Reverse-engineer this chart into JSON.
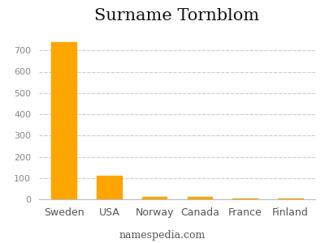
{
  "title": "Surname Tornblom",
  "categories": [
    "Sweden",
    "USA",
    "Norway",
    "Canada",
    "France",
    "Finland"
  ],
  "values": [
    740,
    112,
    13,
    11,
    4,
    4
  ],
  "bar_color": "#FFA500",
  "background_color": "#ffffff",
  "ylim": [
    0,
    800
  ],
  "yticks": [
    0,
    100,
    200,
    300,
    400,
    500,
    600,
    700
  ],
  "grid_color": "#cccccc",
  "title_fontsize": 15,
  "tick_fontsize": 8,
  "xlabel_fontsize": 9,
  "footer_text": "namespedia.com",
  "footer_fontsize": 9
}
